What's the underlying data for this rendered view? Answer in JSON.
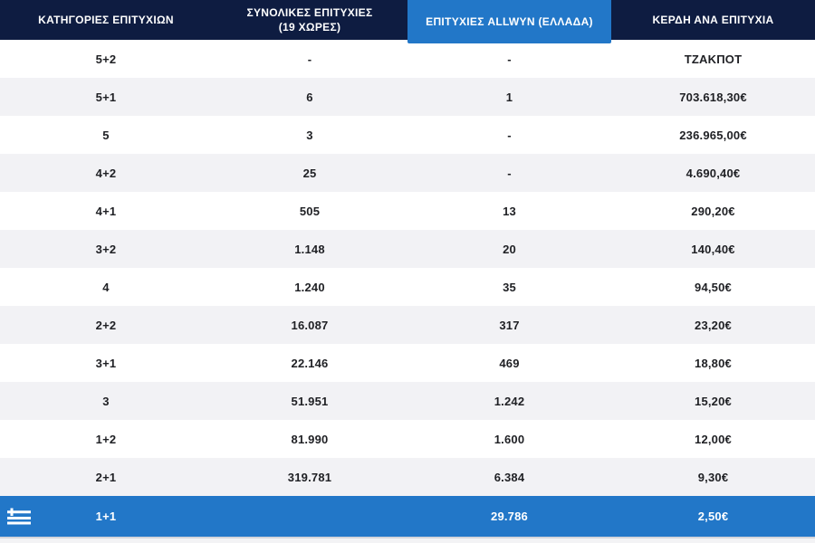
{
  "colors": {
    "header_bg": "#0E1C41",
    "accent_blue": "#2277C8",
    "row_bg": "#FFFFFF",
    "row_alt_bg": "#F2F2F5",
    "cell_text": "#1F2024",
    "header_text": "#FFFFFF"
  },
  "table": {
    "headers": {
      "categories": "ΚΑΤΗΓΟΡΙΕΣ ΕΠΙΤΥΧΙΩΝ",
      "total_line1": "ΣΥΝΟΛΙΚΕΣ ΕΠΙΤΥΧΙΕΣ",
      "total_line2": "(19 ΧΩΡΕΣ)",
      "allwyn": "ΕΠΙΤΥΧΙΕΣ ALLWYN (ΕΛΛΑΔΑ)",
      "prize": "ΚΕΡΔΗ ΑΝΑ ΕΠΙΤΥΧΙΑ"
    },
    "rows": [
      {
        "category": "5+2",
        "total": "-",
        "allwyn": "-",
        "prize": "ΤΖΑΚΠΟΤ"
      },
      {
        "category": "5+1",
        "total": "6",
        "allwyn": "1",
        "prize": "703.618,30€"
      },
      {
        "category": "5",
        "total": "3",
        "allwyn": "-",
        "prize": "236.965,00€"
      },
      {
        "category": "4+2",
        "total": "25",
        "allwyn": "-",
        "prize": "4.690,40€"
      },
      {
        "category": "4+1",
        "total": "505",
        "allwyn": "13",
        "prize": "290,20€"
      },
      {
        "category": "3+2",
        "total": "1.148",
        "allwyn": "20",
        "prize": "140,40€"
      },
      {
        "category": "4",
        "total": "1.240",
        "allwyn": "35",
        "prize": "94,50€"
      },
      {
        "category": "2+2",
        "total": "16.087",
        "allwyn": "317",
        "prize": "23,20€"
      },
      {
        "category": "3+1",
        "total": "22.146",
        "allwyn": "469",
        "prize": "18,80€"
      },
      {
        "category": "3",
        "total": "51.951",
        "allwyn": "1.242",
        "prize": "15,20€"
      },
      {
        "category": "1+2",
        "total": "81.990",
        "allwyn": "1.600",
        "prize": "12,00€"
      },
      {
        "category": "2+1",
        "total": "319.781",
        "allwyn": "6.384",
        "prize": "9,30€"
      }
    ],
    "highlight_row": {
      "category": "1+1",
      "total": "",
      "allwyn": "29.786",
      "prize": "2,50€",
      "flag_icon": "greek-flag-icon"
    }
  }
}
